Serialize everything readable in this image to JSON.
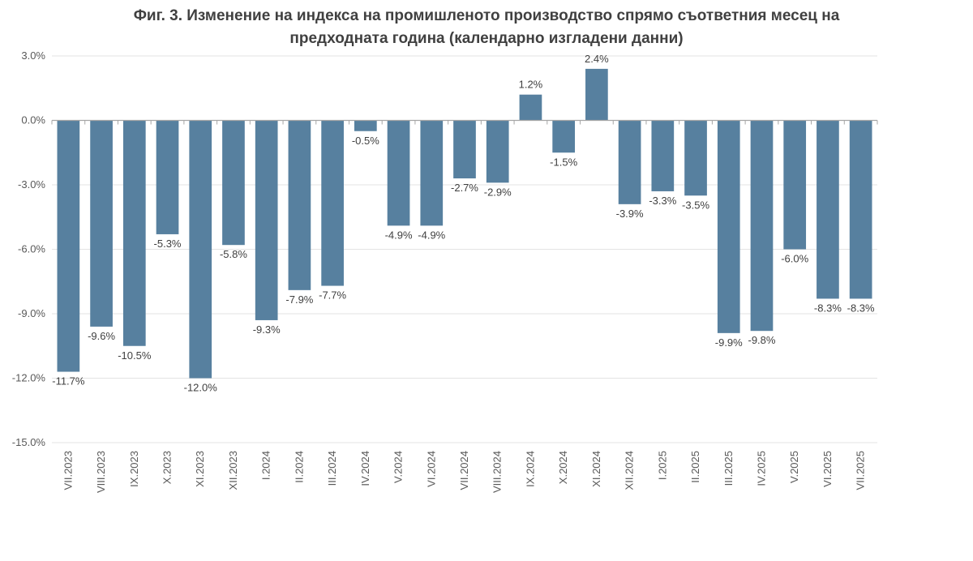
{
  "chart_data": {
    "type": "bar",
    "title": "Фиг. 3. Изменение на индекса на промишленото производство спрямо съответния месец на предходната година (календарно изгладени данни)",
    "title_lines": [
      "Фиг. 3. Изменение на индекса на промишленото производство спрямо съответния месец на",
      "предходната година (календарно изгладени данни)"
    ],
    "categories": [
      "VII.2023",
      "VIII.2023",
      "IX.2023",
      "X.2023",
      "XI.2023",
      "XII.2023",
      "I.2024",
      "II.2024",
      "III.2024",
      "IV.2024",
      "V.2024",
      "VI.2024",
      "VII.2024",
      "VIII.2024",
      "IX.2024",
      "X.2024",
      "XI.2024",
      "XII.2024",
      "I.2025",
      "II.2025",
      "III.2025",
      "IV.2025",
      "V.2025",
      "VI.2025",
      "VII.2025"
    ],
    "values": [
      -11.7,
      -9.6,
      -10.5,
      -5.3,
      -12.0,
      -5.8,
      -9.3,
      -7.9,
      -7.7,
      -0.5,
      -4.9,
      -4.9,
      -2.7,
      -2.9,
      1.2,
      -1.5,
      2.4,
      -3.9,
      -3.3,
      -3.5,
      -9.9,
      -9.8,
      -6.0,
      -8.3,
      -8.3
    ],
    "value_labels": [
      "-11.7%",
      "-9.6%",
      "-10.5%",
      "-5.3%",
      "-12.0%",
      "-5.8%",
      "-9.3%",
      "-7.9%",
      "-7.7%",
      "-0.5%",
      "-4.9%",
      "-4.9%",
      "-2.7%",
      "-2.9%",
      "1.2%",
      "-1.5%",
      "2.4%",
      "-3.9%",
      "-3.3%",
      "-3.5%",
      "-9.9%",
      "-9.8%",
      "-6.0%",
      "-8.3%",
      "-8.3%"
    ],
    "yticks": [
      3.0,
      0.0,
      -3.0,
      -6.0,
      -9.0,
      -12.0,
      -15.0
    ],
    "ytick_labels": [
      "3.0%",
      "0.0%",
      "-3.0%",
      "-6.0%",
      "-9.0%",
      "-12.0%",
      "-15.0%"
    ],
    "ylim": [
      -15.0,
      3.0
    ],
    "xlabel": "",
    "ylabel": "",
    "grid": true,
    "legend": "none",
    "bar_color": "#57809f",
    "grid_color": "#e3e3e3",
    "axis_color": "#a6a6a6"
  }
}
